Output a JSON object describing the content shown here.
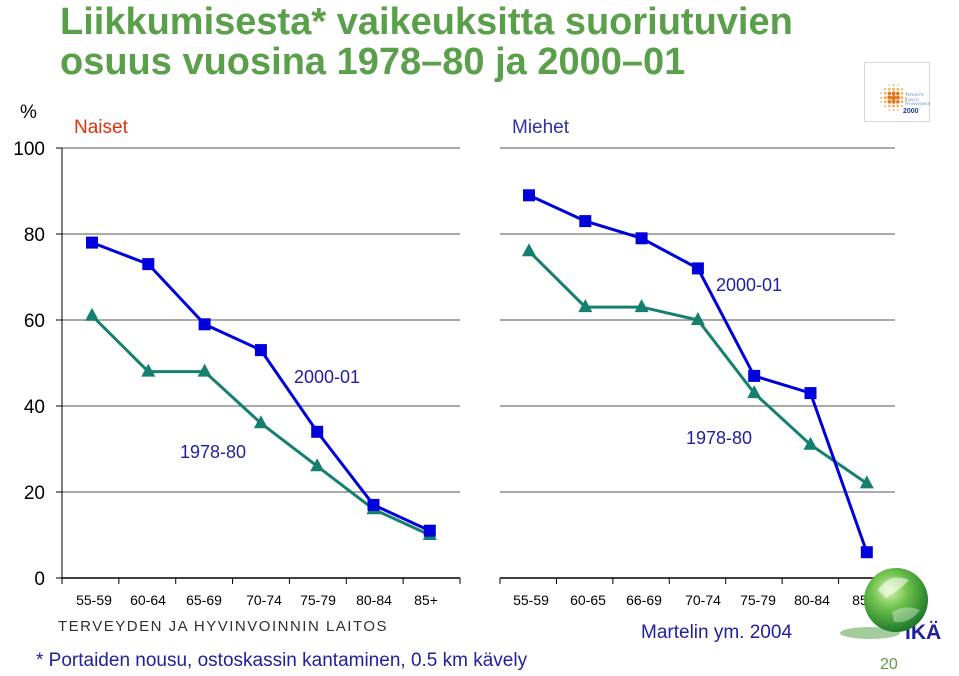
{
  "title_line1": "Liikkumisesta* vaikeuksitta suoriutuvien",
  "title_line2": "osuus vuosina 1978–80 ja 2000–01",
  "y_unit": "%",
  "footer": {
    "organization": "TERVEYDEN JA HYVINVOINNIN LAITOS",
    "citation": "Martelin ym. 2004",
    "footnote": "* Portaiden nousu, ostoskassin kantaminen, 0.5 km kävely",
    "brand": "IKÄ",
    "page_number": "20"
  },
  "logo": {
    "lines": [
      "TERVEYS",
      "KUNTO",
      "HYVINVOINTI",
      "2000"
    ],
    "year": "2000"
  },
  "colors": {
    "title": "#5aa04a",
    "naiset_label": "#e03010",
    "miehet_label": "#3030a0",
    "series_2000_01": "#0000dd",
    "series_1978_80": "#158070",
    "text_blue": "#1f1fa0"
  },
  "chart_data": [
    {
      "type": "line",
      "panel_title": "Naiset",
      "categories": [
        "55-59",
        "60-64",
        "65-69",
        "70-74",
        "75-79",
        "80-84",
        "85+"
      ],
      "ylim": [
        0,
        100
      ],
      "yticks": [
        0,
        20,
        40,
        60,
        80,
        100
      ],
      "grid": true,
      "series": [
        {
          "name": "2000-01",
          "marker": "square",
          "values": [
            78,
            73,
            59,
            53,
            34,
            17,
            11
          ]
        },
        {
          "name": "1978-80",
          "marker": "triangle",
          "values": [
            61,
            48,
            48,
            36,
            26,
            16,
            10
          ]
        }
      ]
    },
    {
      "type": "line",
      "panel_title": "Miehet",
      "categories": [
        "55-59",
        "60-65",
        "66-69",
        "70-74",
        "75-79",
        "80-84",
        "85+"
      ],
      "ylim": [
        0,
        100
      ],
      "yticks": [
        0,
        20,
        40,
        60,
        80,
        100
      ],
      "grid": true,
      "series": [
        {
          "name": "2000-01",
          "marker": "square",
          "values": [
            89,
            83,
            79,
            72,
            47,
            43,
            6
          ]
        },
        {
          "name": "1978-80",
          "marker": "triangle",
          "values": [
            76,
            63,
            63,
            60,
            43,
            31,
            22
          ]
        }
      ]
    }
  ]
}
